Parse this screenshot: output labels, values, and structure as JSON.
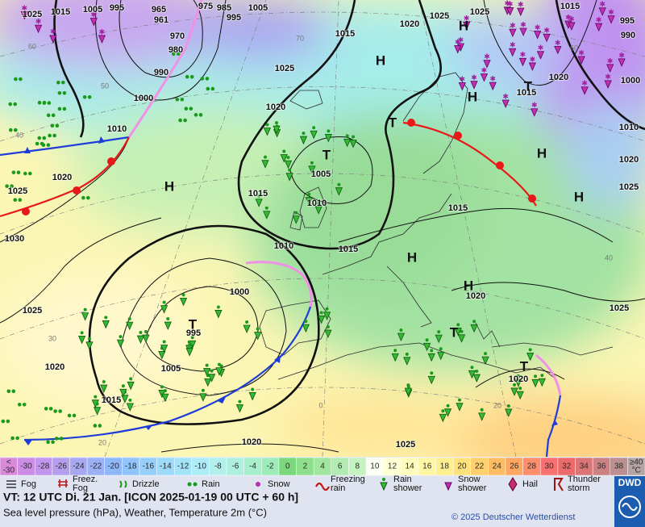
{
  "map": {
    "isobar_labels": [
      "1025",
      "1015",
      "1005",
      "995",
      "965",
      "961",
      "975",
      "985",
      "995",
      "1005",
      "970",
      "980",
      "990",
      "1000",
      "1010",
      "1020",
      "1025",
      "1030",
      "1025",
      "1020",
      "1015",
      "1005",
      "995",
      "1000",
      "1010",
      "1015",
      "1005",
      "1010",
      "1015",
      "1020",
      "1025",
      "1015",
      "1020",
      "1025",
      "1025",
      "1015",
      "995",
      "990",
      "1020",
      "1015",
      "1000",
      "1010",
      "1020",
      "1025",
      "1015",
      "1020",
      "1025",
      "1020",
      "1020",
      "1025"
    ],
    "pressure_centers": [
      "H",
      "H",
      "H",
      "H",
      "H",
      "H",
      "H",
      "H",
      "T",
      "T",
      "T",
      "T",
      "T",
      "T"
    ],
    "graticule_labels": [
      "60",
      "50",
      "40",
      "30",
      "20",
      "70",
      "60",
      "40",
      "20",
      "0"
    ]
  },
  "color_scale": [
    {
      "lines": [
        "<",
        "-30"
      ],
      "color": "#d88ad8"
    },
    {
      "lines": [
        "-30"
      ],
      "color": "#cc8ee4"
    },
    {
      "lines": [
        "-28"
      ],
      "color": "#c296ec"
    },
    {
      "lines": [
        "-26"
      ],
      "color": "#b69eef"
    },
    {
      "lines": [
        "-24"
      ],
      "color": "#a8a8f2"
    },
    {
      "lines": [
        "-22"
      ],
      "color": "#9cb0f6"
    },
    {
      "lines": [
        "-20"
      ],
      "color": "#8eb8f8"
    },
    {
      "lines": [
        "-18"
      ],
      "color": "#90c4fa"
    },
    {
      "lines": [
        "-16"
      ],
      "color": "#96cffc"
    },
    {
      "lines": [
        "-14"
      ],
      "color": "#9cdafc"
    },
    {
      "lines": [
        "-12"
      ],
      "color": "#a4e4fb"
    },
    {
      "lines": [
        "-10"
      ],
      "color": "#aeecf8"
    },
    {
      "lines": [
        "-8"
      ],
      "color": "#b2f0ee"
    },
    {
      "lines": [
        "-6"
      ],
      "color": "#aeefe0"
    },
    {
      "lines": [
        "-4"
      ],
      "color": "#a6eecc"
    },
    {
      "lines": [
        "-2"
      ],
      "color": "#9cebb8"
    },
    {
      "lines": [
        "0"
      ],
      "color": "#7cd87c"
    },
    {
      "lines": [
        "2"
      ],
      "color": "#8ee08e"
    },
    {
      "lines": [
        "4"
      ],
      "color": "#a0e6a0"
    },
    {
      "lines": [
        "6"
      ],
      "color": "#b2ecb2"
    },
    {
      "lines": [
        "8"
      ],
      "color": "#c4f2c0"
    },
    {
      "lines": [
        "10"
      ],
      "color": "#fbfff4"
    },
    {
      "lines": [
        "12"
      ],
      "color": "#ffffd6"
    },
    {
      "lines": [
        "14"
      ],
      "color": "#fffcbc"
    },
    {
      "lines": [
        "16"
      ],
      "color": "#fff6a4"
    },
    {
      "lines": [
        "18"
      ],
      "color": "#ffee90"
    },
    {
      "lines": [
        "20"
      ],
      "color": "#ffe27e"
    },
    {
      "lines": [
        "22"
      ],
      "color": "#ffd06e"
    },
    {
      "lines": [
        "24"
      ],
      "color": "#ffbc62"
    },
    {
      "lines": [
        "26"
      ],
      "color": "#ffa662"
    },
    {
      "lines": [
        "28"
      ],
      "color": "#ff8e6c"
    },
    {
      "lines": [
        "30"
      ],
      "color": "#f87070"
    },
    {
      "lines": [
        "32"
      ],
      "color": "#ec6a6a"
    },
    {
      "lines": [
        "34"
      ],
      "color": "#dc7676"
    },
    {
      "lines": [
        "36"
      ],
      "color": "#cc8282"
    },
    {
      "lines": [
        "38"
      ],
      "color": "#bc9090"
    },
    {
      "lines": [
        "≥40",
        "°C"
      ],
      "color": "#b4a4a4"
    }
  ],
  "legend": [
    {
      "lines": [
        "Fog"
      ]
    },
    {
      "lines": [
        "Freez.",
        "Fog"
      ]
    },
    {
      "lines": [
        "Drizzle"
      ]
    },
    {
      "lines": [
        "Rain"
      ]
    },
    {
      "lines": [
        "Snow"
      ]
    },
    {
      "lines": [
        "Freezing",
        "rain"
      ]
    },
    {
      "lines": [
        "Rain",
        "shower"
      ]
    },
    {
      "lines": [
        "Snow",
        "shower"
      ]
    },
    {
      "lines": [
        "Hail"
      ]
    },
    {
      "lines": [
        "Thunder",
        "storm"
      ]
    }
  ],
  "footer": {
    "valid_time": "VT: 12 UTC Di.  21 Jan. [ICON 2025-01-19  00 UTC + 60 h]",
    "description": "Sea level pressure (hPa), Weather, Temperature 2m (°C)",
    "copyright": "© 2025 Deutscher Wetterdienst",
    "logo": "DWD"
  }
}
